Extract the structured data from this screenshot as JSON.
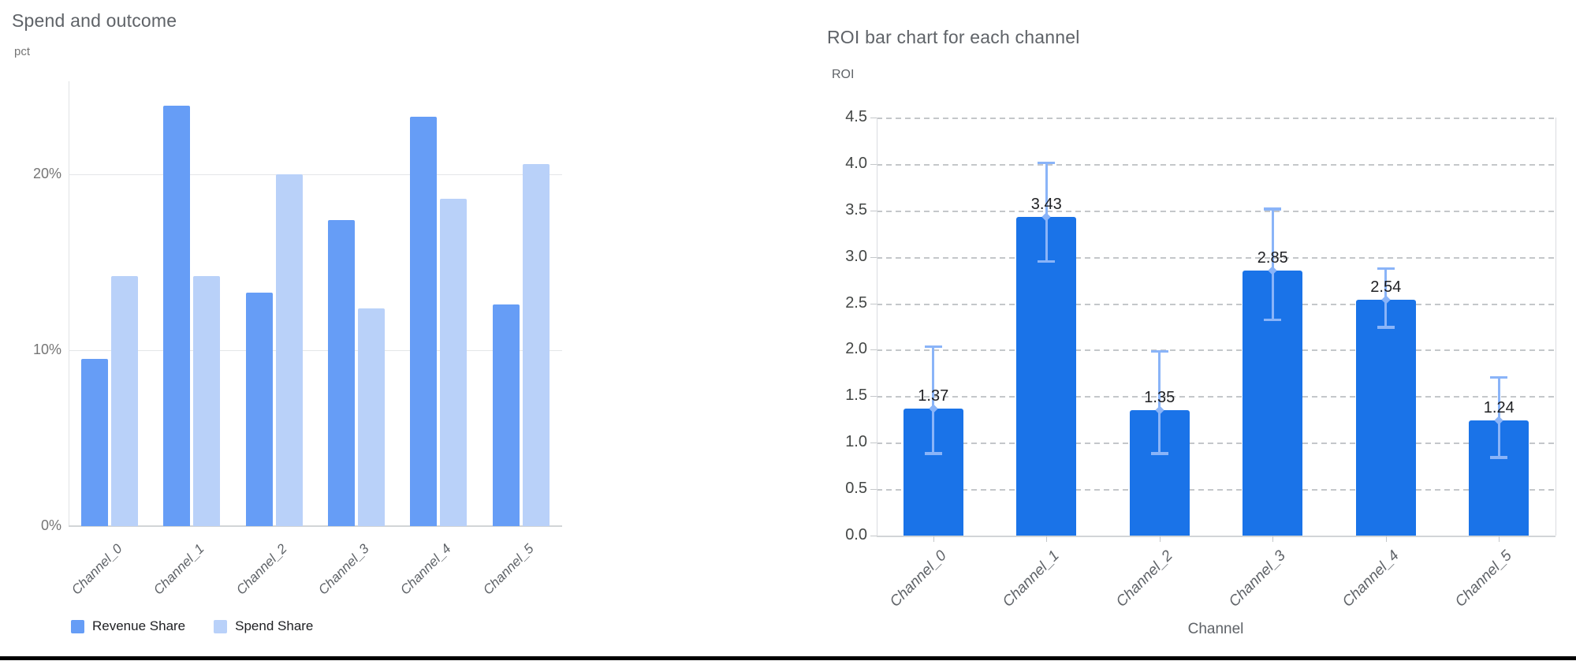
{
  "page": {
    "background": "#ffffff",
    "bottom_edge_color": "#000000"
  },
  "chart_data": [
    {
      "id": "spend_outcome",
      "type": "bar",
      "title": "Spend and outcome",
      "ylabel": "pct",
      "categories": [
        "Channel_0",
        "Channel_1",
        "Channel_2",
        "Channel_3",
        "Channel_4",
        "Channel_5"
      ],
      "series": [
        {
          "name": "Revenue Share",
          "color": "#669df6",
          "values": [
            9.5,
            23.9,
            13.3,
            17.4,
            23.3,
            12.6
          ]
        },
        {
          "name": "Spend Share",
          "color": "#b9d1f9",
          "values": [
            14.2,
            14.2,
            20.0,
            12.4,
            18.6,
            20.6
          ]
        }
      ],
      "yticks": [
        {
          "value": 0,
          "label": "0%"
        },
        {
          "value": 10,
          "label": "10%"
        },
        {
          "value": 20,
          "label": "20%"
        }
      ],
      "ylim": [
        0,
        25.3
      ],
      "grid": "horizontal-solid",
      "legend_position": "bottom-left"
    },
    {
      "id": "roi_by_channel",
      "type": "bar",
      "title": "ROI bar chart for each channel",
      "ylabel": "ROI",
      "xlabel": "Channel",
      "categories": [
        "Channel_0",
        "Channel_1",
        "Channel_2",
        "Channel_3",
        "Channel_4",
        "Channel_5"
      ],
      "series": [
        {
          "name": "ROI",
          "color": "#1a73e8",
          "values": [
            1.37,
            3.43,
            1.35,
            2.85,
            2.54,
            1.24
          ]
        }
      ],
      "bar_labels": [
        "1.37",
        "3.43",
        "1.35",
        "2.85",
        "2.54",
        "1.24"
      ],
      "error_bars": {
        "color": "#8ab4f8",
        "low": [
          0.88,
          2.95,
          0.88,
          2.32,
          2.24,
          0.84
        ],
        "high": [
          2.04,
          4.02,
          1.99,
          3.52,
          2.88,
          1.71
        ]
      },
      "yticks": [
        {
          "value": 0.0,
          "label": "0.0"
        },
        {
          "value": 0.5,
          "label": "0.5"
        },
        {
          "value": 1.0,
          "label": "1.0"
        },
        {
          "value": 1.5,
          "label": "1.5"
        },
        {
          "value": 2.0,
          "label": "2.0"
        },
        {
          "value": 2.5,
          "label": "2.5"
        },
        {
          "value": 3.0,
          "label": "3.0"
        },
        {
          "value": 3.5,
          "label": "3.5"
        },
        {
          "value": 4.0,
          "label": "4.0"
        },
        {
          "value": 4.5,
          "label": "4.5"
        }
      ],
      "ylim": [
        0,
        4.5
      ],
      "grid": "horizontal-dashed",
      "legend_position": "none"
    }
  ]
}
